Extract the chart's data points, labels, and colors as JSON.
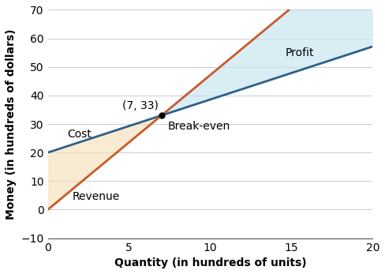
{
  "title": "",
  "xlabel": "Quantity (in hundreds of units)",
  "ylabel": "Money (in hundreds of dollars)",
  "xlim": [
    0,
    20
  ],
  "ylim": [
    -10,
    70
  ],
  "xticks": [
    0,
    5,
    10,
    15,
    20
  ],
  "yticks": [
    -10,
    0,
    10,
    20,
    30,
    40,
    50,
    60,
    70
  ],
  "breakeven_x": 7,
  "breakeven_y": 33,
  "breakeven_label": "(7, 33)",
  "breakeven_note": "Break-even",
  "cost_label": "Cost",
  "revenue_label": "Revenue",
  "profit_label": "Profit",
  "cost_color": "#2e5f8a",
  "revenue_color": "#c85a2a",
  "profit_fill_color": "#c8e6f0",
  "loss_fill_color": "#f5deb3",
  "profit_fill_alpha": 0.7,
  "loss_fill_alpha": 0.6,
  "background_color": "#ffffff",
  "grid_color": "#cccccc",
  "font_size": 10,
  "line_width": 2.0
}
